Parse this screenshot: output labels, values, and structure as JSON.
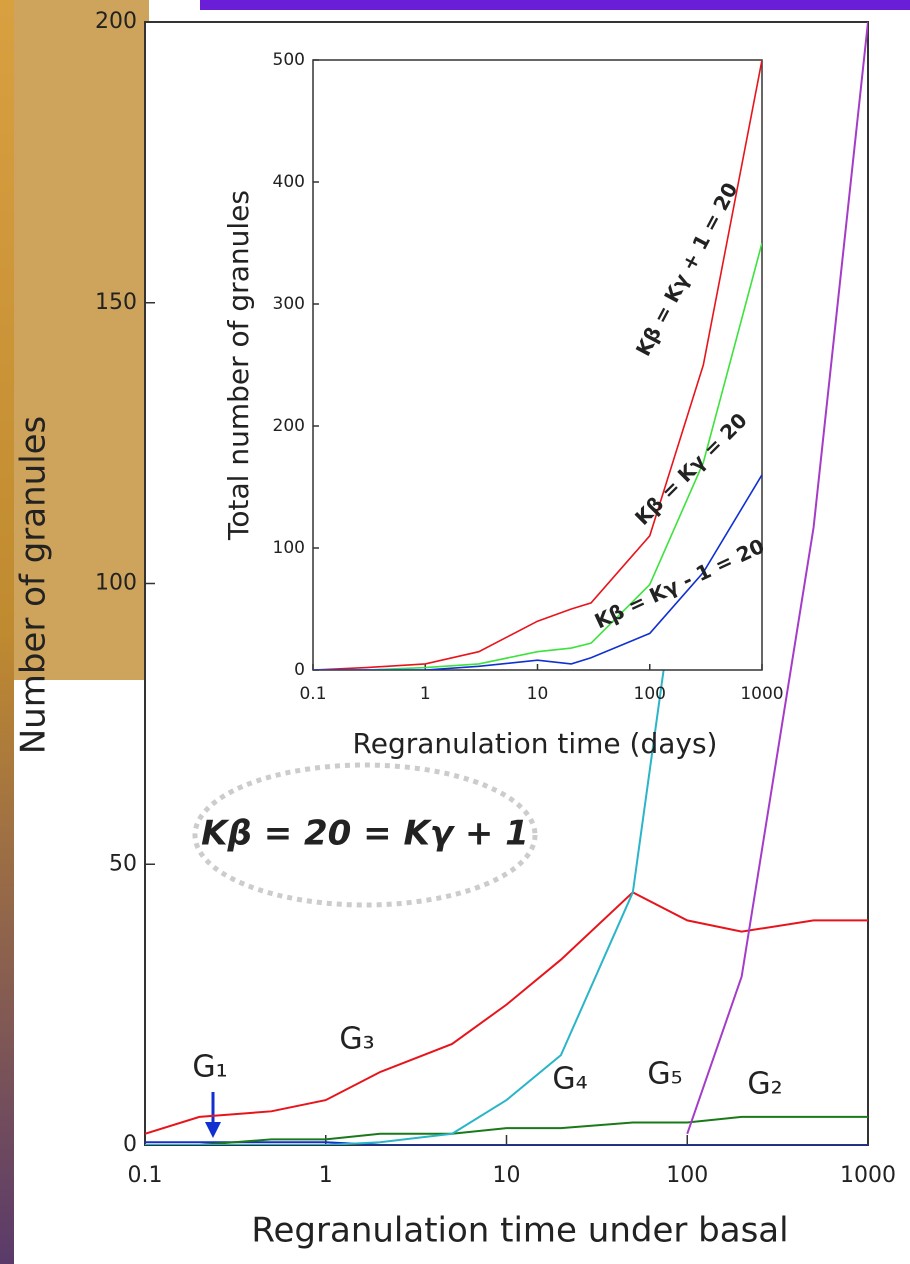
{
  "chart_data": [
    {
      "type": "line",
      "xlabel": "Regranulation time under basal",
      "ylabel": "Number of granules",
      "log_x": true,
      "xlim": [
        0.1,
        1000
      ],
      "ylim": [
        0,
        200
      ],
      "xticks": [
        0.1,
        1,
        10,
        100,
        1000
      ],
      "yticks": [
        0,
        50,
        100,
        150,
        200
      ],
      "x": [
        0.1,
        0.2,
        0.5,
        1,
        2,
        5,
        10,
        20,
        50,
        100,
        200,
        500,
        1000
      ],
      "series": [
        {
          "name": "G₁",
          "color": "#1030d0",
          "values": [
            0.5,
            0.5,
            0.5,
            0.5,
            0,
            0,
            0,
            0,
            0,
            0,
            0,
            0,
            0
          ]
        },
        {
          "name": "G₂",
          "color": "#1a7a1a",
          "values": [
            0,
            0,
            1,
            1,
            2,
            2,
            3,
            3,
            4,
            4,
            5,
            5,
            5
          ]
        },
        {
          "name": "G₃",
          "color": "#e8141c",
          "values": [
            2,
            5,
            6,
            8,
            13,
            18,
            25,
            33,
            45,
            40,
            38,
            40,
            40
          ]
        },
        {
          "name": "G₄",
          "color": "#2ab5c8",
          "values": [
            0,
            0,
            0,
            0,
            0.5,
            2,
            8,
            16,
            45,
            115,
            190,
            null,
            null
          ]
        },
        {
          "name": "G₅",
          "color": "#a43cc8",
          "values": [
            null,
            null,
            null,
            null,
            null,
            null,
            null,
            null,
            null,
            2,
            30,
            110,
            200
          ]
        }
      ],
      "annotations": [
        "Kβ = 20 = Kγ + 1"
      ]
    },
    {
      "type": "line",
      "xlabel": "Regranulation time (days)",
      "ylabel": "Total number of granules",
      "log_x": true,
      "xlim": [
        0.1,
        1000
      ],
      "ylim": [
        0,
        500
      ],
      "xticks": [
        0.1,
        1,
        10,
        100,
        1000
      ],
      "yticks": [
        0,
        100,
        200,
        300,
        400,
        500
      ],
      "x": [
        0.1,
        0.3,
        1,
        3,
        10,
        20,
        30,
        100,
        300,
        1000
      ],
      "series": [
        {
          "name": "Kβ = Kγ + 1 = 20",
          "color": "#e8141c",
          "values": [
            0,
            2,
            5,
            15,
            40,
            50,
            55,
            110,
            250,
            500
          ]
        },
        {
          "name": "Kβ = Kγ = 20",
          "color": "#3de23d",
          "values": [
            0,
            0,
            2,
            5,
            15,
            18,
            22,
            70,
            170,
            350
          ]
        },
        {
          "name": "Kβ = Kγ - 1 = 20",
          "color": "#1030d0",
          "values": [
            0,
            0,
            0,
            3,
            8,
            5,
            10,
            30,
            80,
            160
          ]
        }
      ]
    }
  ]
}
